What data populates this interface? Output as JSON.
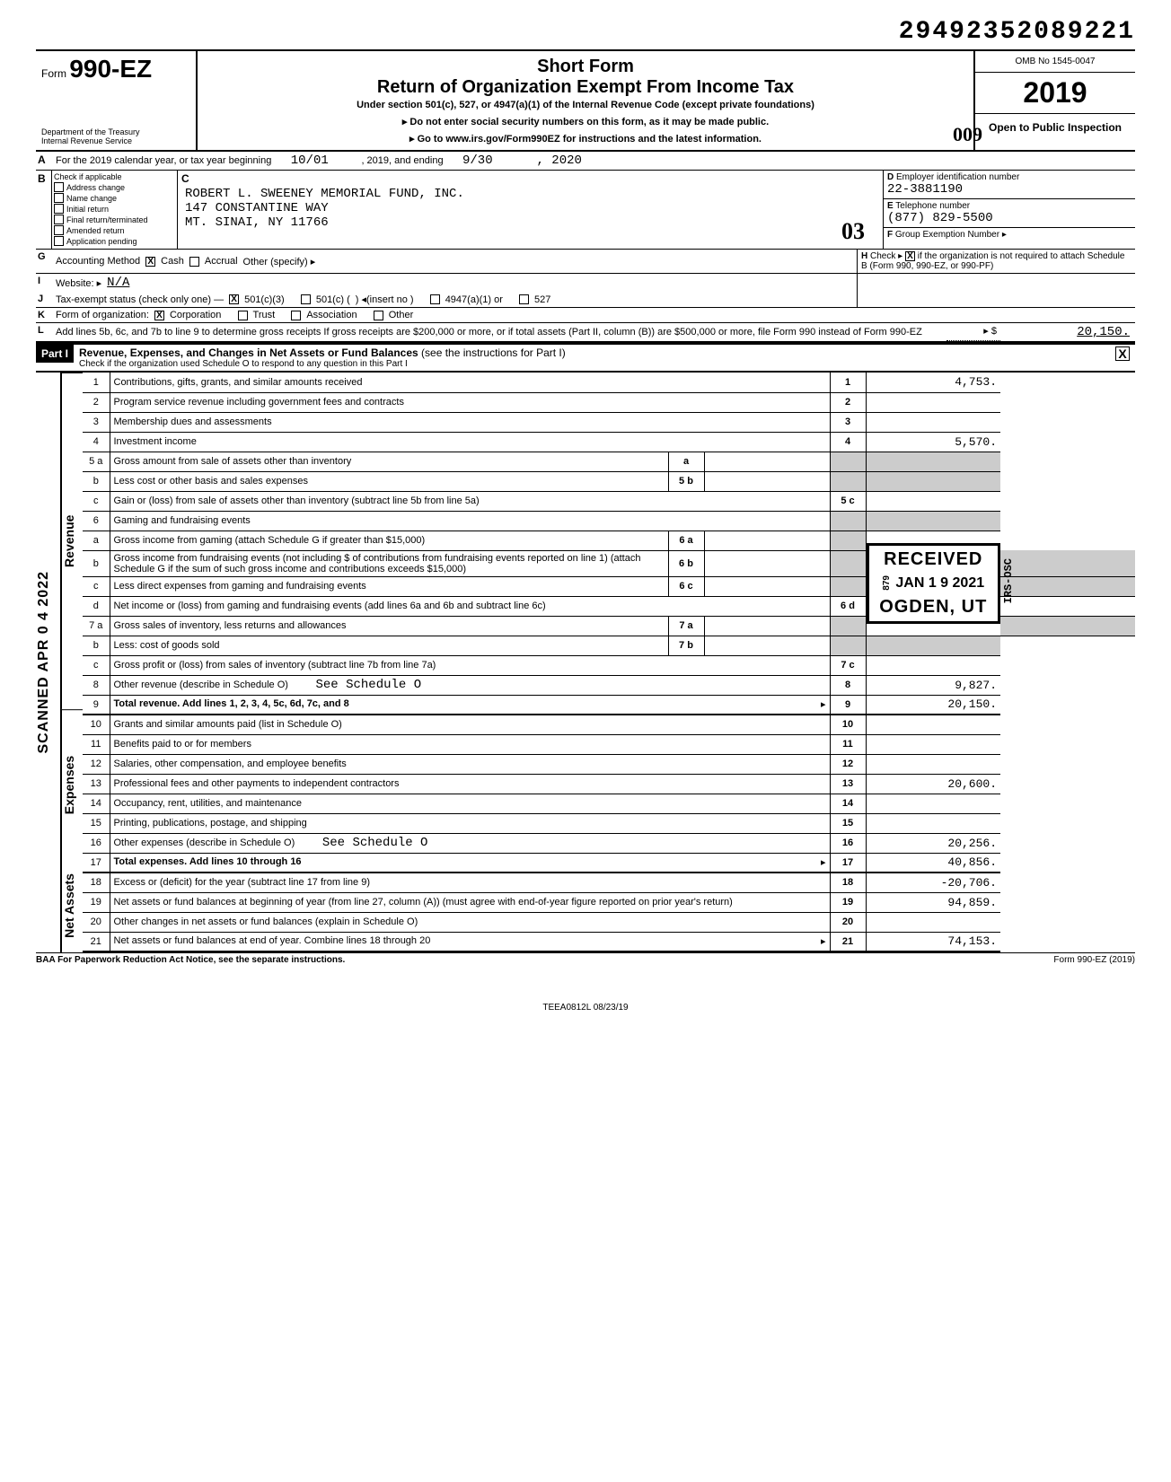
{
  "top_number": "29492352089221",
  "header": {
    "form_label": "Form",
    "form_number": "990-EZ",
    "short_form": "Short Form",
    "title": "Return of Organization Exempt From Income Tax",
    "subtitle": "Under section 501(c), 527, or 4947(a)(1) of the Internal Revenue Code (except private foundations)",
    "note1": "▸ Do not enter social security numbers on this form, as it may be made public.",
    "note2": "▸ Go to www.irs.gov/Form990EZ for instructions and the latest information.",
    "handwritten": "009",
    "dept1": "Department of the Treasury",
    "dept2": "Internal Revenue Service",
    "omb": "OMB No 1545-0047",
    "year": "2019",
    "open": "Open to Public Inspection"
  },
  "lineA": {
    "label": "A",
    "text_pre": "For the 2019 calendar year, or tax year beginning",
    "begin": "10/01",
    "mid": ", 2019, and ending",
    "end": "9/30",
    "tail": ", 2020"
  },
  "blockB": {
    "label": "B",
    "check_if": "Check if applicable",
    "opts": [
      "Address change",
      "Name change",
      "Initial return",
      "Final return/terminated",
      "Amended return",
      "Application pending"
    ],
    "c_label": "C",
    "org_name": "ROBERT L. SWEENEY MEMORIAL FUND, INC.",
    "addr1": "147 CONSTANTINE WAY",
    "addr2": "MT. SINAI, NY 11766",
    "handwritten": "03",
    "d_label": "D",
    "d_text": "Employer identification number",
    "ein": "22-3881190",
    "e_label": "E",
    "e_text": "Telephone number",
    "phone": "(877) 829-5500",
    "f_label": "F",
    "f_text": "Group Exemption Number ▸"
  },
  "lineG": {
    "label": "G",
    "text": "Accounting Method",
    "cash": "Cash",
    "accrual": "Accrual",
    "other": "Other (specify) ▸",
    "h_label": "H",
    "h_text": "Check ▸",
    "h_tail": "if the organization is not required to attach Schedule B (Form 990, 990-EZ, or 990-PF)"
  },
  "lineI": {
    "label": "I",
    "text": "Website: ▸",
    "val": "N/A"
  },
  "lineJ": {
    "label": "J",
    "text": "Tax-exempt status (check only one) —",
    "o1": "501(c)(3)",
    "o2": "501(c) (",
    "o2b": ")  ◂(insert no )",
    "o3": "4947(a)(1) or",
    "o4": "527"
  },
  "lineK": {
    "label": "K",
    "text": "Form of organization:",
    "corp": "Corporation",
    "trust": "Trust",
    "assoc": "Association",
    "other": "Other"
  },
  "lineL": {
    "label": "L",
    "text": "Add lines 5b, 6c, and 7b to line 9 to determine gross receipts  If gross receipts are $200,000 or more, or if total assets (Part II, column (B)) are $500,000 or more, file Form 990 instead of Form 990-EZ",
    "arrow": "▸ $",
    "val": "20,150."
  },
  "partI": {
    "label": "Part I",
    "title": "Revenue, Expenses, and Changes in Net Assets or Fund Balances",
    "paren": "(see the instructions for Part I)",
    "sub": "Check if the organization used Schedule O to respond to any question in this Part I"
  },
  "sections": {
    "revenue": "Revenue",
    "expenses": "Expenses",
    "netassets": "Net Assets",
    "scanned": "SCANNED APR 0 4 2022"
  },
  "rows": [
    {
      "n": "1",
      "desc": "Contributions, gifts, grants, and similar amounts received",
      "en": "1",
      "ev": "4,753."
    },
    {
      "n": "2",
      "desc": "Program service revenue including government fees and contracts",
      "en": "2",
      "ev": ""
    },
    {
      "n": "3",
      "desc": "Membership dues and assessments",
      "en": "3",
      "ev": ""
    },
    {
      "n": "4",
      "desc": "Investment income",
      "en": "4",
      "ev": "5,570."
    },
    {
      "n": "5 a",
      "desc": "Gross amount from sale of assets other than inventory",
      "mn": "a",
      "mv": ""
    },
    {
      "n": "b",
      "desc": "Less  cost or other basis and sales expenses",
      "mn": "5 b",
      "mv": ""
    },
    {
      "n": "c",
      "desc": "Gain or (loss) from sale of assets other than inventory (subtract line 5b from line 5a)",
      "en": "5 c",
      "ev": "",
      "stamp_start": true
    },
    {
      "n": "6",
      "desc": "Gaming and fundraising events"
    },
    {
      "n": "a",
      "desc": "Gross income from gaming (attach Schedule G if greater than $15,000)",
      "mn": "6 a",
      "mv": ""
    },
    {
      "n": "b",
      "desc": "Gross income from fundraising events (not including   $                              of contributions from fundraising events reported on line 1) (attach Schedule G if the sum of such gross income and contributions exceeds $15,000)",
      "mn": "6 b",
      "mv": ""
    },
    {
      "n": "c",
      "desc": "Less  direct expenses from gaming and fundraising events",
      "mn": "6 c",
      "mv": ""
    },
    {
      "n": "d",
      "desc": "Net income or (loss) from gaming and fundraising events (add lines 6a and 6b and subtract line 6c)",
      "en": "6 d",
      "ev": ""
    },
    {
      "n": "7 a",
      "desc": "Gross sales of inventory, less returns and allowances",
      "mn": "7 a",
      "mv": ""
    },
    {
      "n": "b",
      "desc": "Less: cost of goods sold",
      "mn": "7 b",
      "mv": ""
    },
    {
      "n": "c",
      "desc": "Gross profit or (loss) from sales of inventory (subtract line 7b from line 7a)",
      "en": "7 c",
      "ev": ""
    },
    {
      "n": "8",
      "desc": "Other revenue (describe in Schedule O)",
      "note": "See Schedule O",
      "en": "8",
      "ev": "9,827."
    },
    {
      "n": "9",
      "desc": "Total revenue. Add lines 1, 2, 3, 4, 5c, 6d, 7c, and 8",
      "bold": true,
      "arrow": true,
      "en": "9",
      "ev": "20,150.",
      "heavy": true
    },
    {
      "n": "10",
      "desc": "Grants and similar amounts paid (list in Schedule O)",
      "en": "10",
      "ev": ""
    },
    {
      "n": "11",
      "desc": "Benefits paid to or for members",
      "en": "11",
      "ev": ""
    },
    {
      "n": "12",
      "desc": "Salaries, other compensation, and employee benefits",
      "en": "12",
      "ev": ""
    },
    {
      "n": "13",
      "desc": "Professional fees and other payments to independent contractors",
      "en": "13",
      "ev": "20,600."
    },
    {
      "n": "14",
      "desc": "Occupancy, rent, utilities, and maintenance",
      "en": "14",
      "ev": ""
    },
    {
      "n": "15",
      "desc": "Printing, publications, postage, and shipping",
      "en": "15",
      "ev": ""
    },
    {
      "n": "16",
      "desc": "Other expenses (describe in Schedule O)",
      "note": "See Schedule O",
      "en": "16",
      "ev": "20,256."
    },
    {
      "n": "17",
      "desc": "Total expenses. Add lines 10 through 16",
      "bold": true,
      "arrow": true,
      "en": "17",
      "ev": "40,856.",
      "heavy": true
    },
    {
      "n": "18",
      "desc": "Excess or (deficit) for the year (subtract line 17 from line 9)",
      "en": "18",
      "ev": "-20,706."
    },
    {
      "n": "19",
      "desc": "Net assets or fund balances at beginning of year (from line 27, column (A)) (must agree with end-of-year figure reported on prior year's return)",
      "en": "19",
      "ev": "94,859."
    },
    {
      "n": "20",
      "desc": "Other changes in net assets or fund balances (explain in Schedule O)",
      "en": "20",
      "ev": ""
    },
    {
      "n": "21",
      "desc": "Net assets or fund balances at end of year. Combine lines 18 through 20",
      "arrow": true,
      "en": "21",
      "ev": "74,153.",
      "heavy": true
    }
  ],
  "stamp": {
    "received": "RECEIVED",
    "date": "JAN 1 9 2021",
    "ogden": "OGDEN, UT",
    "irs_osc": "IRS-OSC",
    "num": "879"
  },
  "footer": {
    "left": "BAA  For Paperwork Reduction Act Notice, see the separate instructions.",
    "right": "Form 990-EZ (2019)",
    "mid": "TEEA0812L   08/23/19"
  }
}
